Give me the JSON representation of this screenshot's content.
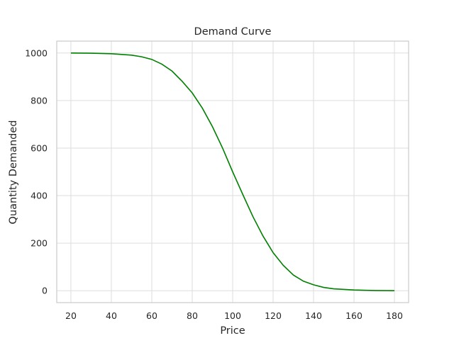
{
  "chart_data": {
    "type": "line",
    "title": "Demand Curve",
    "xlabel": "Price",
    "ylabel": "Quantity Demanded",
    "xlim": [
      13,
      187
    ],
    "ylim": [
      -50,
      1050
    ],
    "xticks": [
      20,
      40,
      60,
      80,
      100,
      120,
      140,
      160,
      180
    ],
    "yticks": [
      0,
      200,
      400,
      600,
      800,
      1000
    ],
    "grid": true,
    "line_color": "#008000",
    "series": [
      {
        "x": [
          20,
          30,
          40,
          50,
          55,
          60,
          65,
          70,
          75,
          80,
          85,
          90,
          95,
          100,
          105,
          110,
          115,
          120,
          125,
          130,
          135,
          140,
          145,
          150,
          160,
          170,
          180
        ],
        "y": [
          1000,
          999,
          997,
          991,
          984,
          973,
          953,
          924,
          881,
          832,
          768,
          690,
          600,
          500,
          405,
          312,
          230,
          160,
          107,
          66,
          40,
          25,
          14,
          8,
          3,
          1,
          0
        ]
      }
    ]
  }
}
